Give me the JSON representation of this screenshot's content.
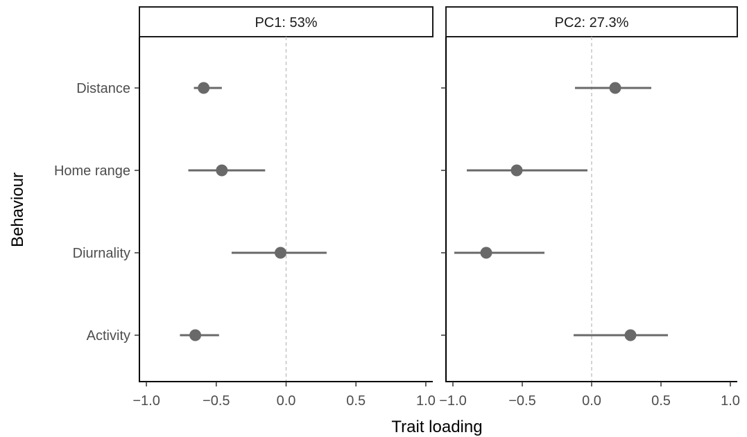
{
  "chart_data": {
    "type": "scatter",
    "subtype": "point-range (forest plot), faceted",
    "xlabel": "Trait loading",
    "ylabel": "Behaviour",
    "xlim": [
      -1.05,
      1.05
    ],
    "x_ticks": [
      -1.0,
      -0.5,
      0.0,
      0.5,
      1.0
    ],
    "x_tick_labels": [
      "−1.0",
      "−0.5",
      "0.0",
      "0.5",
      "1.0"
    ],
    "categories": [
      "Distance",
      "Home range",
      "Diurnality",
      "Activity"
    ],
    "reference_line": 0,
    "grid": false,
    "legend": "none",
    "colors": {
      "point": "#696969",
      "range": "#696969",
      "reference": "#bdbdbd",
      "axis": "#000000"
    },
    "facets": [
      {
        "label": "PC1: 53%",
        "points": [
          {
            "behaviour": "Distance",
            "estimate": -0.59,
            "lower": -0.66,
            "upper": -0.46
          },
          {
            "behaviour": "Home range",
            "estimate": -0.46,
            "lower": -0.7,
            "upper": -0.15
          },
          {
            "behaviour": "Diurnality",
            "estimate": -0.04,
            "lower": -0.39,
            "upper": 0.29
          },
          {
            "behaviour": "Activity",
            "estimate": -0.65,
            "lower": -0.76,
            "upper": -0.48
          }
        ]
      },
      {
        "label": "PC2: 27.3%",
        "points": [
          {
            "behaviour": "Distance",
            "estimate": 0.17,
            "lower": -0.12,
            "upper": 0.43
          },
          {
            "behaviour": "Home range",
            "estimate": -0.54,
            "lower": -0.9,
            "upper": -0.03
          },
          {
            "behaviour": "Diurnality",
            "estimate": -0.76,
            "lower": -0.99,
            "upper": -0.34
          },
          {
            "behaviour": "Activity",
            "estimate": 0.28,
            "lower": -0.13,
            "upper": 0.55
          }
        ]
      }
    ]
  }
}
